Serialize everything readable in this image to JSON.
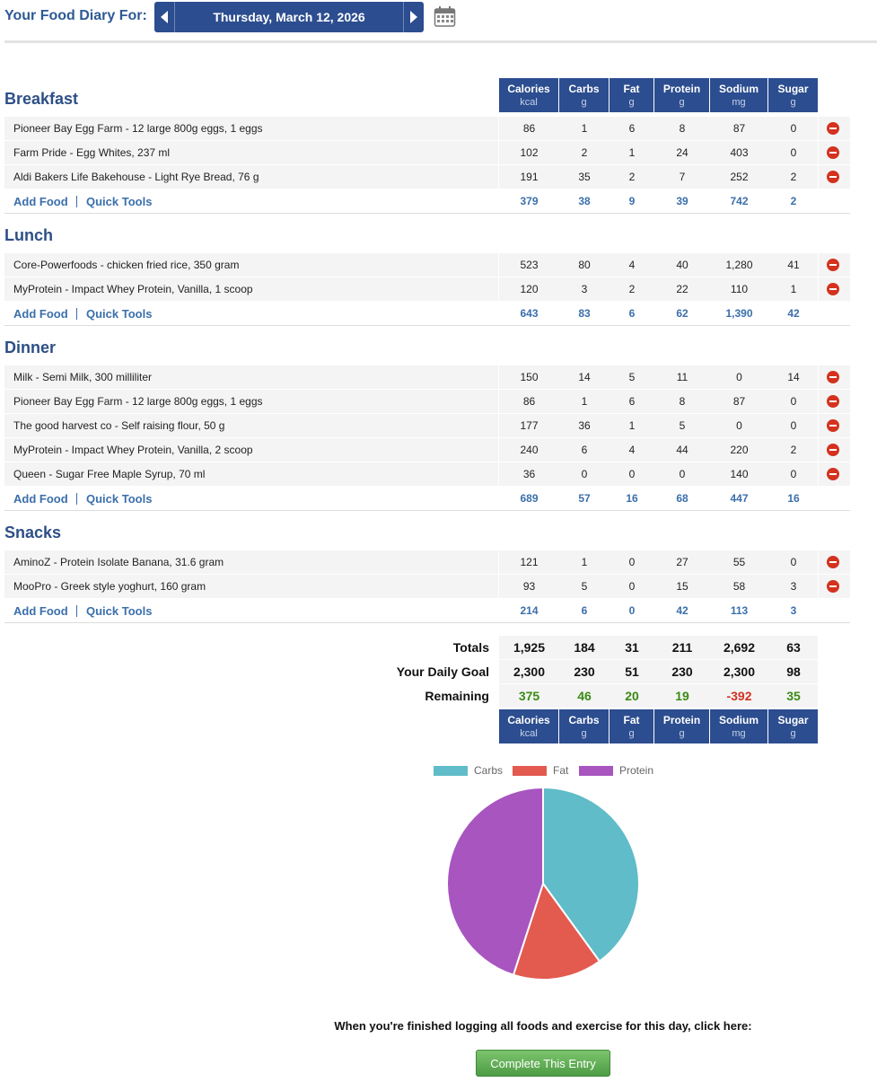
{
  "header": {
    "title": "Your Food Diary For:",
    "date": "Thursday, March 12, 2026"
  },
  "columns": [
    {
      "name": "Calories",
      "unit": "kcal"
    },
    {
      "name": "Carbs",
      "unit": "g"
    },
    {
      "name": "Fat",
      "unit": "g"
    },
    {
      "name": "Protein",
      "unit": "g"
    },
    {
      "name": "Sodium",
      "unit": "mg"
    },
    {
      "name": "Sugar",
      "unit": "g"
    }
  ],
  "links": {
    "add": "Add Food",
    "tools": "Quick Tools"
  },
  "meals": [
    {
      "name": "Breakfast",
      "items": [
        {
          "food": "Pioneer Bay Egg Farm - 12 large 800g eggs, 1 eggs",
          "values": [
            86,
            1,
            6,
            8,
            87,
            0
          ]
        },
        {
          "food": "Farm Pride - Egg Whites, 237 ml",
          "values": [
            102,
            2,
            1,
            24,
            403,
            0
          ]
        },
        {
          "food": "Aldi Bakers Life Bakehouse - Light Rye Bread, 76 g",
          "values": [
            191,
            35,
            2,
            7,
            252,
            2
          ]
        }
      ],
      "totals": [
        379,
        38,
        9,
        39,
        742,
        2
      ]
    },
    {
      "name": "Lunch",
      "items": [
        {
          "food": "Core-Powerfoods - chicken fried rice, 350 gram",
          "values": [
            523,
            80,
            4,
            40,
            "1,280",
            41
          ]
        },
        {
          "food": "MyProtein - Impact Whey Protein, Vanilla, 1 scoop",
          "values": [
            120,
            3,
            2,
            22,
            110,
            1
          ]
        }
      ],
      "totals": [
        643,
        83,
        6,
        62,
        "1,390",
        42
      ]
    },
    {
      "name": "Dinner",
      "items": [
        {
          "food": "Milk - Semi Milk, 300 milliliter",
          "values": [
            150,
            14,
            5,
            11,
            0,
            14
          ]
        },
        {
          "food": "Pioneer Bay Egg Farm - 12 large 800g eggs, 1 eggs",
          "values": [
            86,
            1,
            6,
            8,
            87,
            0
          ]
        },
        {
          "food": "The good harvest co - Self raising flour, 50 g",
          "values": [
            177,
            36,
            1,
            5,
            0,
            0
          ]
        },
        {
          "food": "MyProtein - Impact Whey Protein, Vanilla, 2 scoop",
          "values": [
            240,
            6,
            4,
            44,
            220,
            2
          ]
        },
        {
          "food": "Queen - Sugar Free Maple Syrup, 70 ml",
          "values": [
            36,
            0,
            0,
            0,
            140,
            0
          ]
        }
      ],
      "totals": [
        689,
        57,
        16,
        68,
        447,
        16
      ]
    },
    {
      "name": "Snacks",
      "items": [
        {
          "food": "AminoZ - Protein Isolate Banana, 31.6 gram",
          "values": [
            121,
            1,
            0,
            27,
            55,
            0
          ]
        },
        {
          "food": "MooPro - Greek style yoghurt, 160 gram",
          "values": [
            93,
            5,
            0,
            15,
            58,
            3
          ]
        }
      ],
      "totals": [
        214,
        6,
        0,
        42,
        113,
        3
      ]
    }
  ],
  "summary": [
    {
      "label": "Totals",
      "values": [
        "1,925",
        184,
        31,
        211,
        "2,692",
        63
      ]
    },
    {
      "label": "Your Daily Goal",
      "values": [
        "2,300",
        230,
        51,
        230,
        "2,300",
        98
      ]
    },
    {
      "label": "Remaining",
      "values": [
        375,
        46,
        20,
        19,
        -392,
        35
      ]
    }
  ],
  "chart_data": {
    "type": "pie",
    "categories": [
      "Carbs",
      "Fat",
      "Protein"
    ],
    "values": [
      40,
      15,
      45
    ],
    "colors": [
      "#5fbcc8",
      "#e35a4f",
      "#a855c0"
    ]
  },
  "footer": {
    "prompt": "When you're finished logging all foods and exercise for this day, click here:",
    "button": "Complete This Entry"
  }
}
